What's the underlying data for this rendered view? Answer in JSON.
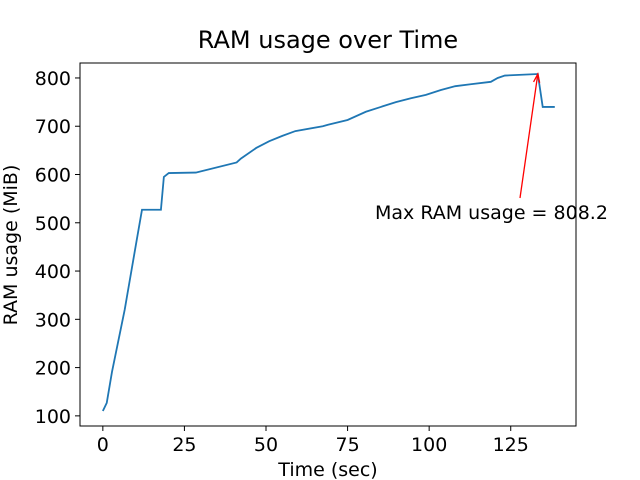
{
  "chart_data": {
    "type": "line",
    "title": "RAM usage over Time",
    "x_label": "Time (sec)",
    "y_label": "RAM usage (MiB)",
    "x": [
      0,
      1.2,
      2.8,
      6.7,
      10.4,
      12,
      17.8,
      18.7,
      20.2,
      28.5,
      41,
      42.3,
      47,
      51,
      55,
      59,
      67.4,
      69,
      75,
      80.6,
      85.2,
      89.8,
      94.4,
      99,
      103.6,
      108,
      112.7,
      118.9,
      121,
      123.2,
      133.3,
      134.8,
      138.5
    ],
    "series": [
      {
        "name": "RAM usage",
        "color": "#1f77b4",
        "values": [
          110,
          127,
          191,
          320,
          465,
          527,
          527,
          595,
          603,
          604,
          625,
          633,
          655,
          669,
          680,
          690,
          700,
          703,
          713,
          730,
          740,
          750,
          758,
          765,
          775,
          783,
          787,
          792,
          800,
          805,
          808.2,
          740,
          740
        ]
      }
    ],
    "annotation": {
      "text": "Max RAM usage = 808.2",
      "color": "#ff0000"
    },
    "xlim": [
      -7,
      145
    ],
    "ylim": [
      79,
      831
    ],
    "xticks": [
      0,
      25,
      50,
      75,
      100,
      125
    ],
    "yticks": [
      100,
      200,
      300,
      400,
      500,
      600,
      700,
      800
    ],
    "grid": false
  }
}
